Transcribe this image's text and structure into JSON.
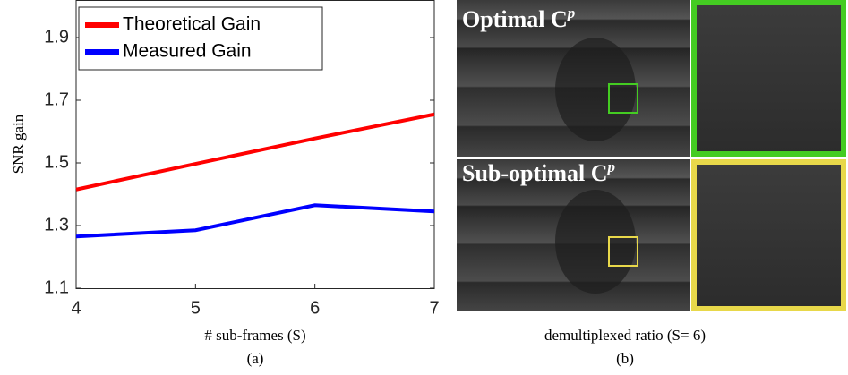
{
  "chart_data": {
    "type": "line",
    "x_label": "# sub-frames (S)",
    "y_label": "SNR gain",
    "x": [
      4,
      5,
      6,
      7
    ],
    "series": [
      {
        "name": "Theoretical Gain",
        "color": "#ff0000",
        "values": [
          1.415,
          1.497,
          1.578,
          1.655
        ]
      },
      {
        "name": "Measured Gain",
        "color": "#0000ff",
        "values": [
          1.265,
          1.285,
          1.365,
          1.345
        ]
      }
    ],
    "xlim": [
      4,
      7
    ],
    "xticks": [
      4,
      5,
      6,
      7
    ],
    "ylim": [
      1.1,
      2.02
    ],
    "yticks": [
      1.1,
      1.3,
      1.5,
      1.7,
      1.9
    ],
    "legend": "upper-left",
    "caption": "(a)"
  },
  "panel_b": {
    "top_label": {
      "text": "Optimal C",
      "superscript": "p"
    },
    "bottom_label": {
      "text": "Sub-optimal C",
      "superscript": "p"
    },
    "x_label": "demultiplexed ratio (S= 6)",
    "caption": "(b)"
  }
}
